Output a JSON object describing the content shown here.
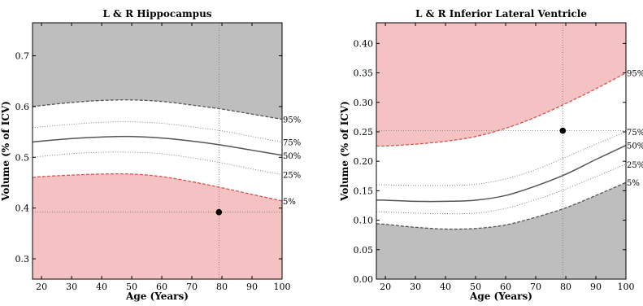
{
  "colors": {
    "gray_fill": "#bebebe",
    "pink_fill": "#f4c2c2",
    "median_line": "#555555",
    "pct_line": "#777777",
    "red_dash": "#d9534f",
    "gray_dash": "#555555",
    "subject_dot": "#000000"
  },
  "chart_data": [
    {
      "type": "line",
      "title": "L & R Hippocampus",
      "xlabel": "Age (Years)",
      "ylabel": "Volume (% of ICV)",
      "xlim": [
        17,
        100
      ],
      "ylim": [
        0.26,
        0.765
      ],
      "xticks": [
        20,
        30,
        40,
        50,
        60,
        70,
        80,
        90,
        100
      ],
      "yticks": [
        0.3,
        0.4,
        0.5,
        0.6,
        0.7
      ],
      "ytick_labels": [
        "0.3",
        "0.4",
        "0.5",
        "0.6",
        "0.7"
      ],
      "upper_shade": "gray",
      "lower_shade": "pink",
      "x": [
        17,
        20,
        30,
        40,
        50,
        60,
        70,
        80,
        90,
        100
      ],
      "series": [
        {
          "name": "95%",
          "values": [
            0.6,
            0.602,
            0.608,
            0.612,
            0.613,
            0.61,
            0.603,
            0.595,
            0.585,
            0.575
          ]
        },
        {
          "name": "75%",
          "values": [
            0.558,
            0.56,
            0.565,
            0.569,
            0.57,
            0.567,
            0.56,
            0.552,
            0.541,
            0.53
          ]
        },
        {
          "name": "50%",
          "values": [
            0.53,
            0.532,
            0.537,
            0.54,
            0.541,
            0.538,
            0.532,
            0.524,
            0.514,
            0.504
          ]
        },
        {
          "name": "25%",
          "values": [
            0.5,
            0.502,
            0.507,
            0.51,
            0.51,
            0.507,
            0.499,
            0.489,
            0.477,
            0.466
          ]
        },
        {
          "name": "5%",
          "values": [
            0.46,
            0.462,
            0.465,
            0.467,
            0.467,
            0.462,
            0.452,
            0.44,
            0.427,
            0.414
          ]
        }
      ],
      "subject_point": {
        "x": 79,
        "y": 0.392
      },
      "pct_labels": [
        "95%",
        "75%",
        "50%",
        "25%",
        "5%"
      ],
      "pct_label_values": [
        0.575,
        0.53,
        0.504,
        0.466,
        0.414
      ]
    },
    {
      "type": "line",
      "title": "L & R Inferior Lateral Ventricle",
      "xlabel": "Age (Years)",
      "ylabel": "Volume (% of ICV)",
      "xlim": [
        17,
        100
      ],
      "ylim": [
        0.0,
        0.435
      ],
      "xticks": [
        20,
        30,
        40,
        50,
        60,
        70,
        80,
        90,
        100
      ],
      "yticks": [
        0.0,
        0.05,
        0.1,
        0.15,
        0.2,
        0.25,
        0.3,
        0.35,
        0.4
      ],
      "ytick_labels": [
        "0.00",
        "0.05",
        "0.10",
        "0.15",
        "0.20",
        "0.25",
        "0.30",
        "0.35",
        "0.40"
      ],
      "upper_shade": "pink",
      "lower_shade": "gray",
      "x": [
        17,
        20,
        30,
        40,
        50,
        60,
        70,
        80,
        90,
        100
      ],
      "series": [
        {
          "name": "95%",
          "values": [
            0.226,
            0.226,
            0.229,
            0.234,
            0.242,
            0.256,
            0.275,
            0.298,
            0.323,
            0.35
          ]
        },
        {
          "name": "75%",
          "values": [
            0.16,
            0.16,
            0.159,
            0.159,
            0.161,
            0.17,
            0.186,
            0.207,
            0.229,
            0.25
          ]
        },
        {
          "name": "50%",
          "values": [
            0.134,
            0.134,
            0.132,
            0.132,
            0.134,
            0.142,
            0.158,
            0.178,
            0.203,
            0.227
          ]
        },
        {
          "name": "25%",
          "values": [
            0.114,
            0.114,
            0.112,
            0.111,
            0.112,
            0.12,
            0.135,
            0.153,
            0.174,
            0.195
          ]
        },
        {
          "name": "5%",
          "values": [
            0.094,
            0.093,
            0.088,
            0.085,
            0.086,
            0.092,
            0.105,
            0.121,
            0.142,
            0.164
          ]
        }
      ],
      "subject_point": {
        "x": 79,
        "y": 0.252
      },
      "pct_labels": [
        "95%",
        "75%",
        "50%",
        "25%",
        "5%"
      ],
      "pct_label_values": [
        0.35,
        0.25,
        0.227,
        0.195,
        0.164
      ]
    }
  ]
}
